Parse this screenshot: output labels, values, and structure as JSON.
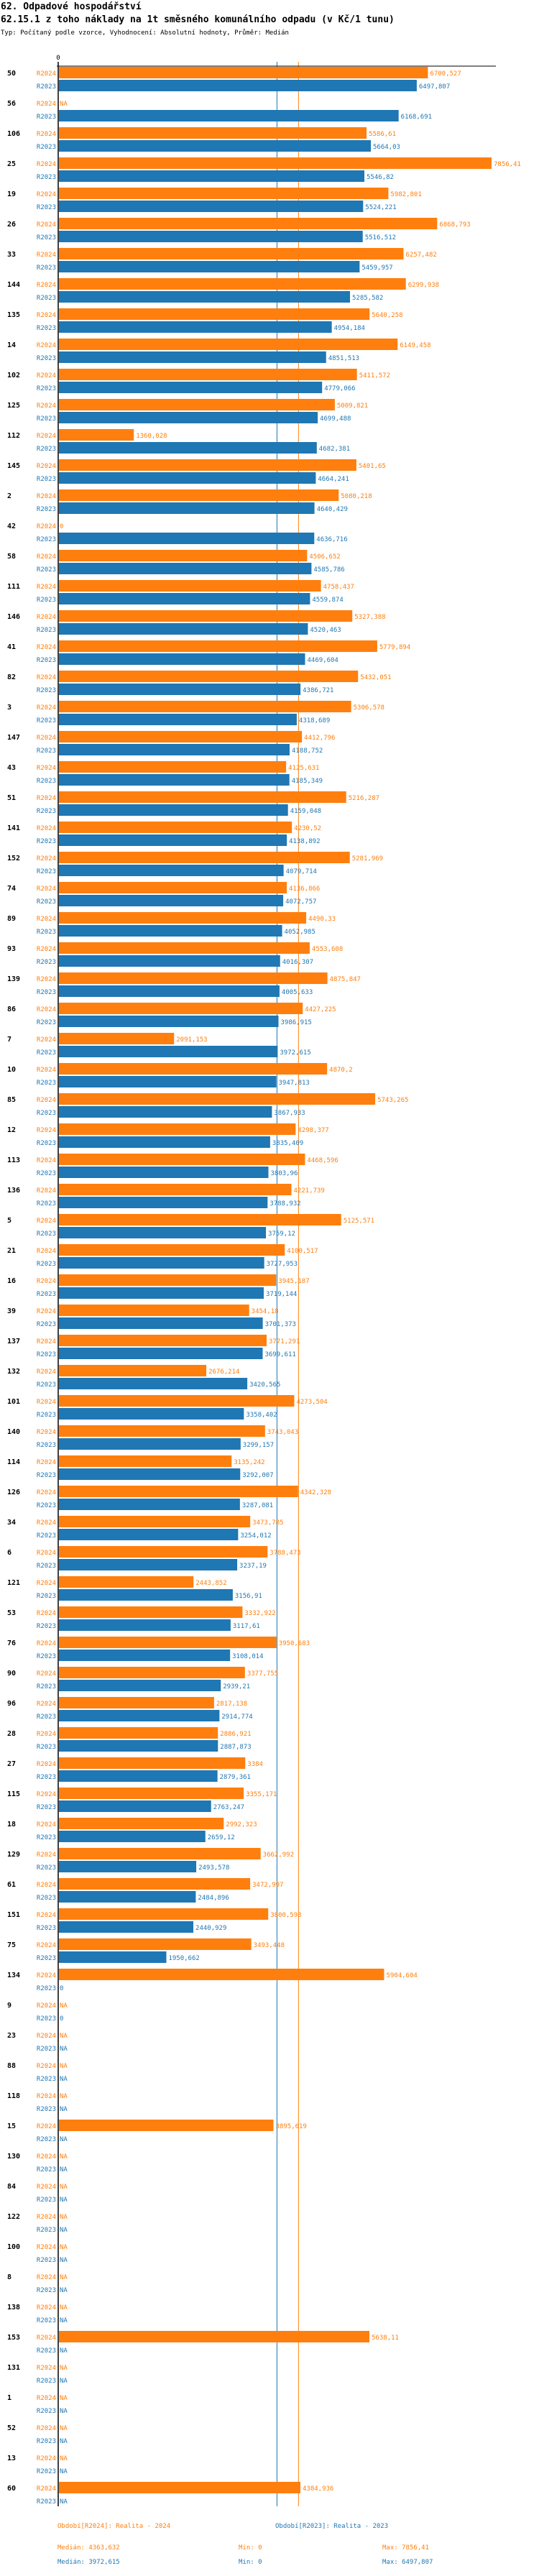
{
  "header": {
    "title": "62. Odpadové hospodářství",
    "subtitle": "62.15.1 z toho náklady na 1t směsného komunálního odpadu (v Kč/1 tunu)",
    "meta": "Typ: Počítaný podle vzorce, Vyhodnocení: Absolutní hodnoty, Průměr: Medián"
  },
  "colors": {
    "R2024": "#ff7f0e",
    "R2023": "#1f77b4",
    "axis": "#000000"
  },
  "chart_data": {
    "type": "bar",
    "orientation": "horizontal",
    "title": "62.15.1 z toho náklady na 1t směsného komunálního odpadu (v Kč/1 tunu)",
    "xlabel": "",
    "ylabel": "",
    "x_tick_labels": [
      "0"
    ],
    "xlim": [
      0,
      7856.41
    ],
    "na_label": "NA",
    "series_names": [
      "R2024",
      "R2023"
    ],
    "categories": [
      "50",
      "56",
      "106",
      "25",
      "19",
      "26",
      "33",
      "144",
      "135",
      "14",
      "102",
      "125",
      "112",
      "145",
      "2",
      "42",
      "58",
      "111",
      "146",
      "41",
      "82",
      "3",
      "147",
      "43",
      "51",
      "141",
      "152",
      "74",
      "89",
      "93",
      "139",
      "86",
      "7",
      "10",
      "85",
      "12",
      "113",
      "136",
      "5",
      "21",
      "16",
      "39",
      "137",
      "132",
      "101",
      "140",
      "114",
      "126",
      "34",
      "6",
      "121",
      "53",
      "76",
      "90",
      "96",
      "28",
      "27",
      "115",
      "18",
      "129",
      "61",
      "151",
      "75",
      "134",
      "9",
      "23",
      "88",
      "118",
      "15",
      "130",
      "84",
      "122",
      "100",
      "8",
      "138",
      "153",
      "131",
      "1",
      "52",
      "13",
      "60"
    ],
    "series": [
      {
        "name": "R2024",
        "values": [
          6700.527,
          null,
          5586.61,
          7856.41,
          5982.801,
          6868.793,
          6257.482,
          6299.938,
          5640.258,
          6149.458,
          5411.572,
          5009.821,
          1360.028,
          5401.65,
          5080.218,
          0,
          4506.652,
          4758.437,
          5327.388,
          5779.894,
          5432.051,
          5306.578,
          4412.796,
          4125.631,
          5216.287,
          4230.52,
          5281.969,
          4136.866,
          4490.33,
          4553.608,
          4875.847,
          4427.225,
          2091.153,
          4870.2,
          5743.265,
          4298.377,
          4468.596,
          4221.739,
          5125.571,
          4100.517,
          3945.187,
          3454.18,
          3771.291,
          2676.214,
          4273.504,
          3743.043,
          3135.242,
          4342.328,
          3473.785,
          3788.473,
          2443.852,
          3332.922,
          3950.683,
          3377.755,
          2817.138,
          2886.921,
          3384,
          3355.171,
          2992.323,
          3662.992,
          3472.997,
          3800.593,
          3493.448,
          5904.604,
          null,
          null,
          null,
          null,
          3895.619,
          null,
          null,
          null,
          null,
          null,
          null,
          5638.11,
          null,
          null,
          null,
          null,
          4384.936
        ],
        "labels": [
          "6700,527",
          "NA",
          "5586,61",
          "7856,41",
          "5982,801",
          "6868,793",
          "6257,482",
          "6299,938",
          "5640,258",
          "6149,458",
          "5411,572",
          "5009,821",
          "1360,028",
          "5401,65",
          "5080,218",
          "0",
          "4506,652",
          "4758,437",
          "5327,388",
          "5779,894",
          "5432,051",
          "5306,578",
          "4412,796",
          "4125,631",
          "5216,287",
          "4230,52",
          "5281,969",
          "4136,866",
          "4490,33",
          "4553,608",
          "4875,847",
          "4427,225",
          "2091,153",
          "4870,2",
          "5743,265",
          "4298,377",
          "4468,596",
          "4221,739",
          "5125,571",
          "4100,517",
          "3945,187",
          "3454,18",
          "3771,291",
          "2676,214",
          "4273,504",
          "3743,043",
          "3135,242",
          "4342,328",
          "3473,785",
          "3788,473",
          "2443,852",
          "3332,922",
          "3950,683",
          "3377,755",
          "2817,138",
          "2886,921",
          "3384",
          "3355,171",
          "2992,323",
          "3662,992",
          "3472,997",
          "3800,593",
          "3493,448",
          "5904,604",
          "NA",
          "NA",
          "NA",
          "NA",
          "3895,619",
          "NA",
          "NA",
          "NA",
          "NA",
          "NA",
          "NA",
          "5638,11",
          "NA",
          "NA",
          "NA",
          "NA",
          "4384,936"
        ]
      },
      {
        "name": "R2023",
        "values": [
          6497.807,
          6168.691,
          5664.03,
          5546.82,
          5524.221,
          5516.512,
          5459.957,
          5285.582,
          4954.184,
          4851.513,
          4779.066,
          4699.488,
          4682.381,
          4664.241,
          4640.429,
          4636.716,
          4585.786,
          4559.874,
          4520.463,
          4469.604,
          4386.721,
          4318.689,
          4188.752,
          4185.349,
          4159.048,
          4138.892,
          4079.714,
          4072.757,
          4052.985,
          4016.307,
          4005.633,
          3986.915,
          3972.615,
          3947.813,
          3867.933,
          3835.409,
          3803.96,
          3788.932,
          3759.12,
          3727.953,
          3719.144,
          3701.373,
          3699.611,
          3420.565,
          3358.402,
          3299.157,
          3292.007,
          3287.081,
          3254.012,
          3237.19,
          3156.91,
          3117.61,
          3108.014,
          2939.21,
          2914.774,
          2887.873,
          2879.361,
          2763.247,
          2659.12,
          2493.578,
          2484.896,
          2440.929,
          1950.662,
          0,
          0,
          null,
          null,
          null,
          null,
          null,
          null,
          null,
          null,
          null,
          null,
          null,
          null,
          null,
          null,
          null,
          null
        ],
        "labels": [
          "6497,807",
          "6168,691",
          "5664,03",
          "5546,82",
          "5524,221",
          "5516,512",
          "5459,957",
          "5285,582",
          "4954,184",
          "4851,513",
          "4779,066",
          "4699,488",
          "4682,381",
          "4664,241",
          "4640,429",
          "4636,716",
          "4585,786",
          "4559,874",
          "4520,463",
          "4469,604",
          "4386,721",
          "4318,689",
          "4188,752",
          "4185,349",
          "4159,048",
          "4138,892",
          "4079,714",
          "4072,757",
          "4052,985",
          "4016,307",
          "4005,633",
          "3986,915",
          "3972,615",
          "3947,813",
          "3867,933",
          "3835,409",
          "3803,96",
          "3788,932",
          "3759,12",
          "3727,953",
          "3719,144",
          "3701,373",
          "3699,611",
          "3420,565",
          "3358,402",
          "3299,157",
          "3292,007",
          "3287,081",
          "3254,012",
          "3237,19",
          "3156,91",
          "3117,61",
          "3108,014",
          "2939,21",
          "2914,774",
          "2887,873",
          "2879,361",
          "2763,247",
          "2659,12",
          "2493,578",
          "2484,896",
          "2440,929",
          "1950,662",
          "0",
          "0",
          "NA",
          "NA",
          "NA",
          "NA",
          "NA",
          "NA",
          "NA",
          "NA",
          "NA",
          "NA",
          "NA",
          "NA",
          "NA",
          "NA",
          "NA",
          "NA"
        ]
      }
    ],
    "reference_lines": [
      {
        "series": "R2024",
        "type": "median",
        "value": 4363.632
      },
      {
        "series": "R2023",
        "type": "median",
        "value": 3972.615
      }
    ],
    "grid": false,
    "legend_placement": "bottom"
  },
  "footer": {
    "legend": [
      {
        "series": "R2024",
        "label": "Období[R2024]: Realita - 2024"
      },
      {
        "series": "R2023",
        "label": "Období[R2023]: Realita - 2023"
      }
    ],
    "stats": [
      {
        "series": "R2024",
        "median": "Medián: 4363,632",
        "min": "Min: 0",
        "max": "Max: 7856,41"
      },
      {
        "series": "R2023",
        "median": "Medián: 3972,615",
        "min": "Min: 0",
        "max": "Max: 6497,807"
      }
    ]
  }
}
